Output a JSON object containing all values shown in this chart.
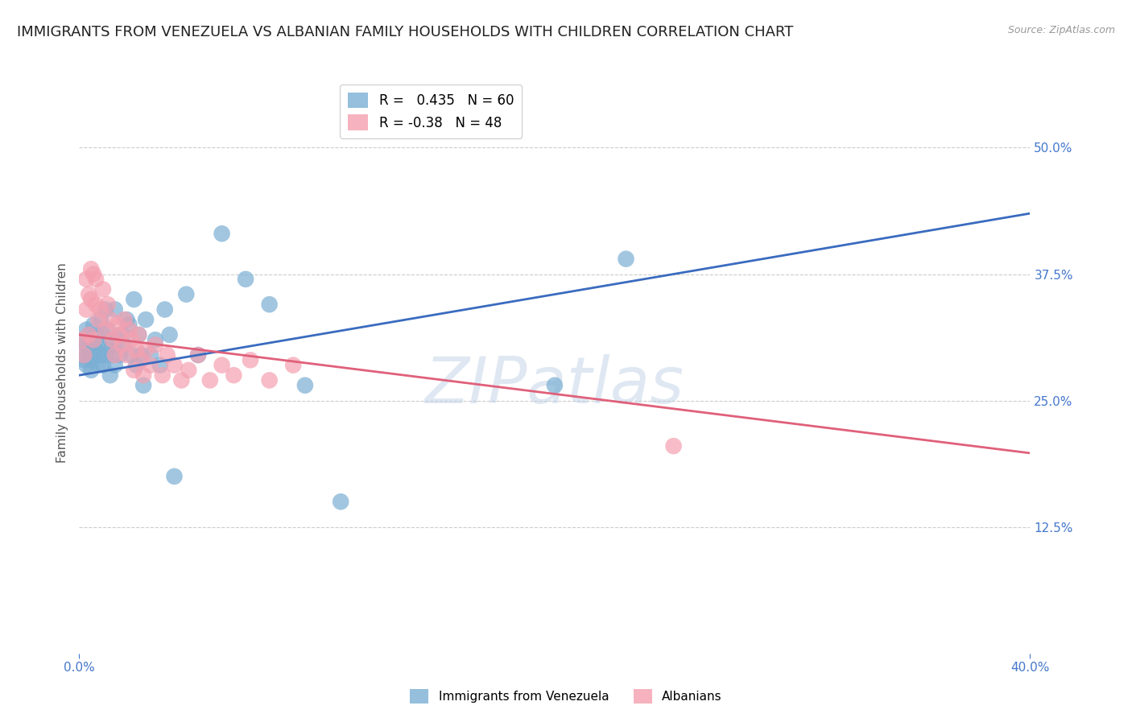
{
  "title": "IMMIGRANTS FROM VENEZUELA VS ALBANIAN FAMILY HOUSEHOLDS WITH CHILDREN CORRELATION CHART",
  "source": "Source: ZipAtlas.com",
  "ylabel": "Family Households with Children",
  "x_min": 0.0,
  "x_max": 0.4,
  "y_min": 0.0,
  "y_max": 0.575,
  "x_ticks": [
    0.0,
    0.4
  ],
  "x_tick_labels": [
    "0.0%",
    "40.0%"
  ],
  "y_ticks": [
    0.125,
    0.25,
    0.375,
    0.5
  ],
  "y_tick_labels": [
    "12.5%",
    "25.0%",
    "37.5%",
    "50.0%"
  ],
  "grid_color": "#cccccc",
  "background_color": "#ffffff",
  "blue_color": "#7bafd4",
  "pink_color": "#f4a0b0",
  "blue_line_color": "#3a6bbf",
  "pink_line_color": "#e0607a",
  "blue_R": 0.435,
  "blue_N": 60,
  "pink_R": -0.38,
  "pink_N": 48,
  "legend_label_blue": "Immigrants from Venezuela",
  "legend_label_pink": "Albanians",
  "watermark": "ZIPatlas",
  "title_fontsize": 13,
  "axis_label_fontsize": 11,
  "tick_fontsize": 11,
  "tick_color": "#4477cc",
  "venezuela_x": [
    0.001,
    0.002,
    0.002,
    0.003,
    0.003,
    0.003,
    0.004,
    0.004,
    0.004,
    0.005,
    0.005,
    0.005,
    0.006,
    0.006,
    0.006,
    0.007,
    0.007,
    0.008,
    0.008,
    0.009,
    0.009,
    0.01,
    0.01,
    0.011,
    0.011,
    0.012,
    0.012,
    0.013,
    0.013,
    0.014,
    0.015,
    0.015,
    0.016,
    0.017,
    0.018,
    0.019,
    0.02,
    0.021,
    0.022,
    0.023,
    0.024,
    0.025,
    0.026,
    0.027,
    0.028,
    0.03,
    0.032,
    0.034,
    0.036,
    0.038,
    0.04,
    0.045,
    0.05,
    0.06,
    0.07,
    0.08,
    0.095,
    0.11,
    0.2,
    0.23
  ],
  "venezuela_y": [
    0.295,
    0.31,
    0.29,
    0.305,
    0.285,
    0.32,
    0.3,
    0.295,
    0.315,
    0.29,
    0.28,
    0.31,
    0.295,
    0.305,
    0.325,
    0.3,
    0.315,
    0.285,
    0.305,
    0.295,
    0.33,
    0.285,
    0.315,
    0.295,
    0.34,
    0.3,
    0.32,
    0.275,
    0.31,
    0.295,
    0.285,
    0.34,
    0.31,
    0.295,
    0.315,
    0.305,
    0.33,
    0.325,
    0.295,
    0.35,
    0.285,
    0.315,
    0.295,
    0.265,
    0.33,
    0.295,
    0.31,
    0.285,
    0.34,
    0.315,
    0.175,
    0.355,
    0.295,
    0.415,
    0.37,
    0.345,
    0.265,
    0.15,
    0.265,
    0.39
  ],
  "albanian_x": [
    0.001,
    0.002,
    0.003,
    0.003,
    0.004,
    0.004,
    0.005,
    0.005,
    0.006,
    0.006,
    0.007,
    0.007,
    0.008,
    0.009,
    0.01,
    0.011,
    0.012,
    0.013,
    0.014,
    0.015,
    0.016,
    0.017,
    0.018,
    0.019,
    0.02,
    0.021,
    0.022,
    0.023,
    0.024,
    0.025,
    0.026,
    0.027,
    0.028,
    0.03,
    0.032,
    0.035,
    0.037,
    0.04,
    0.043,
    0.046,
    0.05,
    0.055,
    0.06,
    0.065,
    0.072,
    0.08,
    0.09,
    0.25
  ],
  "albanian_y": [
    0.31,
    0.295,
    0.37,
    0.34,
    0.355,
    0.315,
    0.38,
    0.35,
    0.31,
    0.375,
    0.345,
    0.37,
    0.33,
    0.34,
    0.36,
    0.32,
    0.345,
    0.33,
    0.31,
    0.295,
    0.325,
    0.315,
    0.305,
    0.33,
    0.295,
    0.32,
    0.31,
    0.28,
    0.3,
    0.315,
    0.29,
    0.275,
    0.3,
    0.285,
    0.305,
    0.275,
    0.295,
    0.285,
    0.27,
    0.28,
    0.295,
    0.27,
    0.285,
    0.275,
    0.29,
    0.27,
    0.285,
    0.205
  ],
  "blue_line_x0": 0.0,
  "blue_line_y0": 0.275,
  "blue_line_x1": 0.4,
  "blue_line_y1": 0.435,
  "pink_line_x0": 0.0,
  "pink_line_y0": 0.315,
  "pink_line_x1": 0.4,
  "pink_line_y1": 0.198
}
